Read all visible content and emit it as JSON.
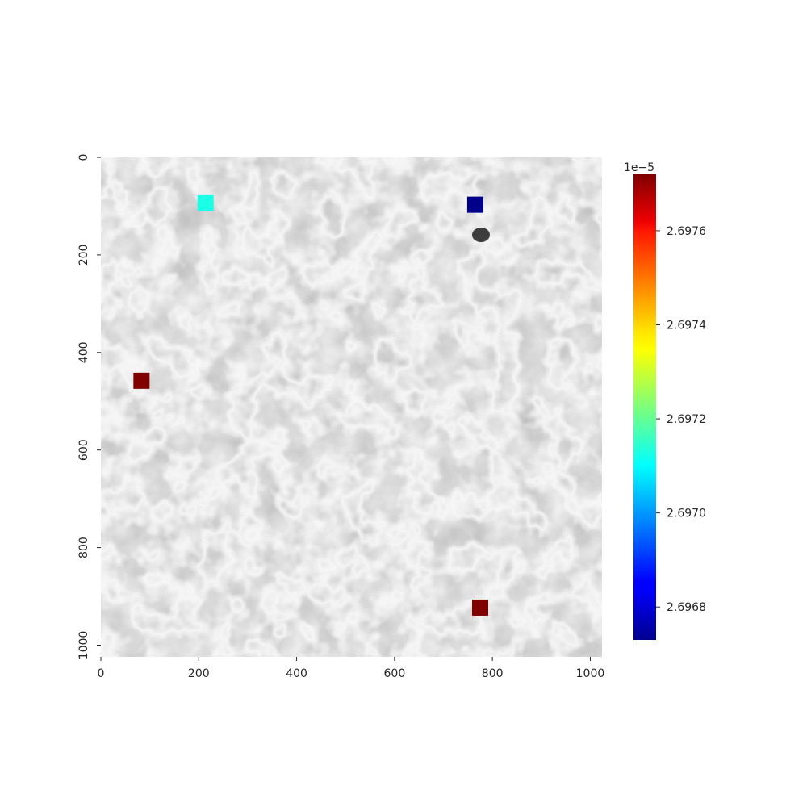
{
  "chart_data": {
    "type": "heatmap",
    "title": "",
    "xlabel": "",
    "ylabel": "",
    "background": "grayscale micrograph (SEM image of metal microstructure)",
    "x_range": [
      0,
      1024
    ],
    "y_range": [
      0,
      1024
    ],
    "y_inverted": true,
    "x_ticks": [
      "0",
      "200",
      "400",
      "600",
      "800",
      "1000"
    ],
    "y_ticks": [
      "0",
      "200",
      "400",
      "600",
      "800",
      "1000"
    ],
    "x_tick_values": [
      0,
      200,
      400,
      600,
      800,
      1000
    ],
    "y_tick_values": [
      0,
      200,
      400,
      600,
      800,
      1000
    ],
    "colorbar": {
      "colormap": "jet",
      "min": 2.69673e-05,
      "max": 2.69772e-05,
      "offset_label": "1e−5",
      "ticks": [
        "2.6968",
        "2.6970",
        "2.6972",
        "2.6974",
        "2.6976"
      ],
      "tick_values": [
        2.6968,
        2.697,
        2.6972,
        2.6974,
        2.6976
      ]
    },
    "markers": [
      {
        "x": 214,
        "y": 94,
        "value": 2.6971e-05,
        "color": "#1affe6"
      },
      {
        "x": 765,
        "y": 97,
        "value": 2.69673e-05,
        "color": "#00008b"
      },
      {
        "x": 83,
        "y": 458,
        "value": 2.69772e-05,
        "color": "#800000"
      },
      {
        "x": 775,
        "y": 923,
        "value": 2.69772e-05,
        "color": "#800000"
      }
    ],
    "grid": false,
    "legend": "colorbar right"
  }
}
